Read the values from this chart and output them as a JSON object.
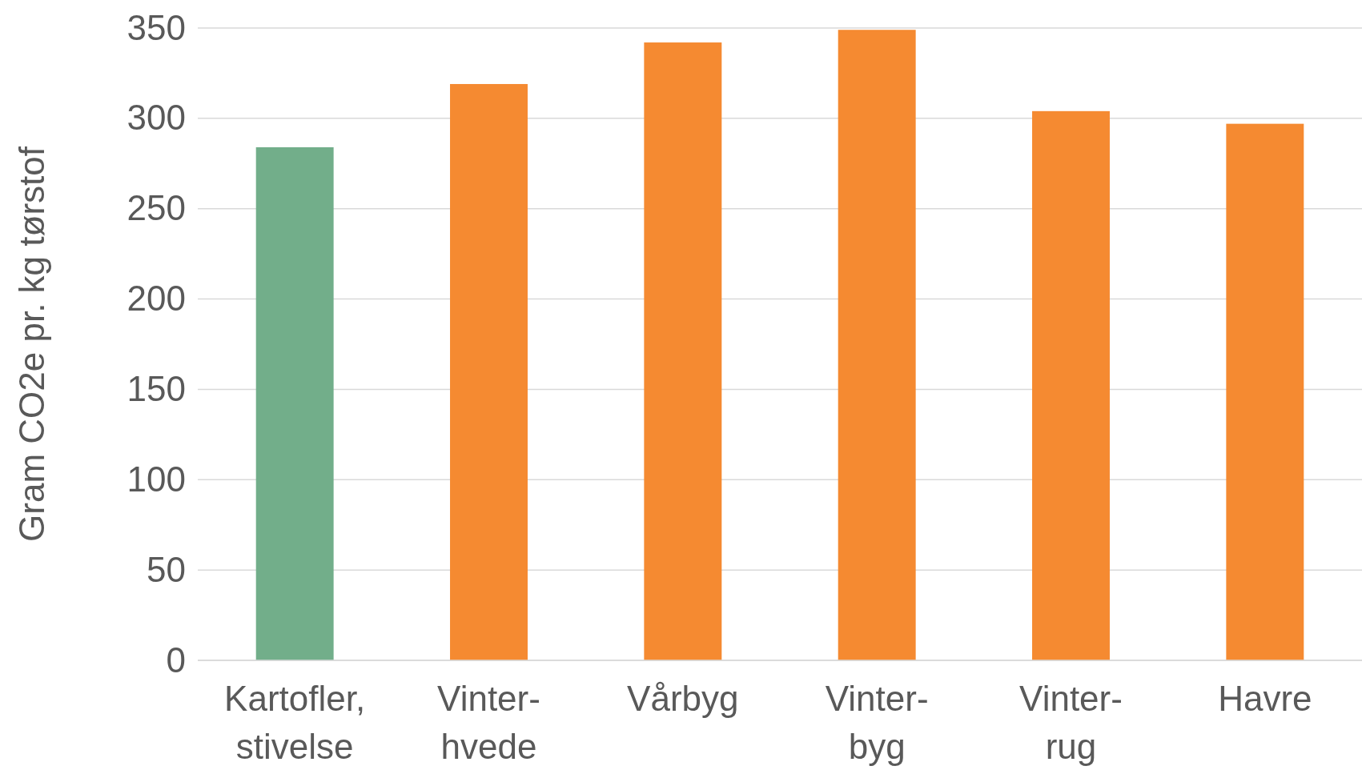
{
  "chart_data": {
    "type": "bar",
    "ylabel": "Gram CO2e pr. kg tørstof",
    "categories": [
      "Kartofler, stivelse",
      "Vinter-hvede",
      "Vårbyg",
      "Vinter-byg",
      "Vinter-rug",
      "Havre"
    ],
    "values": [
      284,
      319,
      342,
      349,
      304,
      297
    ],
    "colors": [
      "#72ae8a",
      "#f58a31",
      "#f58a31",
      "#f58a31",
      "#f58a31",
      "#f58a31"
    ],
    "ylim": [
      0,
      350
    ],
    "yticks": [
      0,
      50,
      100,
      150,
      200,
      250,
      300,
      350
    ],
    "grid": "y"
  }
}
